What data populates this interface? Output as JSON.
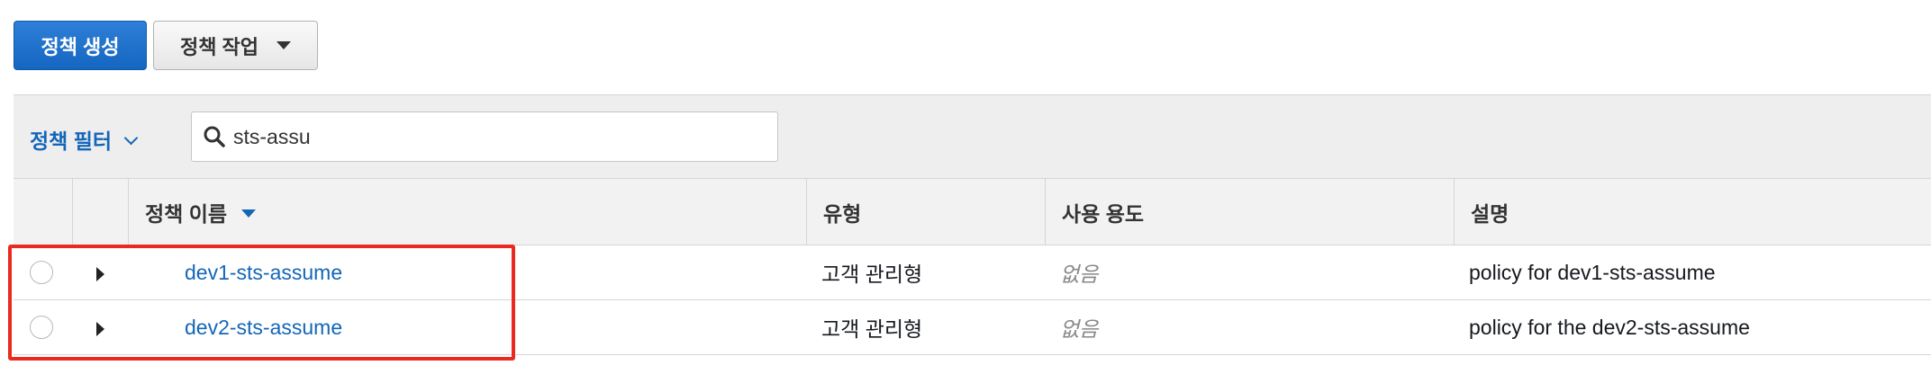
{
  "toolbar": {
    "create_label": "정책 생성",
    "actions_label": "정책 작업"
  },
  "filter": {
    "toggle_label": "정책 필터",
    "search_value": "sts-assu"
  },
  "table": {
    "columns": [
      "정책 이름",
      "유형",
      "사용 용도",
      "설명"
    ],
    "rows": [
      {
        "name": "dev1-sts-assume",
        "type": "고객 관리형",
        "usage": "없음",
        "description": "policy for dev1-sts-assume"
      },
      {
        "name": "dev2-sts-assume",
        "type": "고객 관리형",
        "usage": "없음",
        "description": "policy for the dev2-sts-assume"
      }
    ]
  },
  "colors": {
    "primary": "#1466c0",
    "link": "#1466b8",
    "highlight": "#ea2a1e"
  },
  "icons": [
    "search-icon",
    "chevron-down-icon",
    "caret-down-icon",
    "expand-arrow-icon",
    "radio-button"
  ]
}
